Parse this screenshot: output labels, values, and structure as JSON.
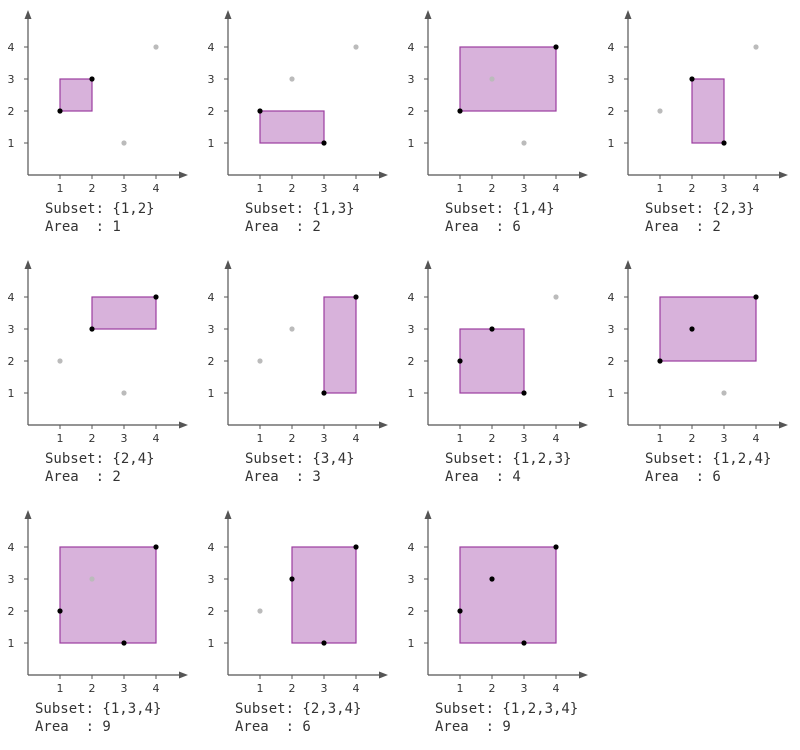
{
  "chart_data": {
    "type": "scatter",
    "axis_ticks": [
      "1",
      "2",
      "3",
      "4"
    ],
    "xlim": [
      0,
      5
    ],
    "ylim": [
      0,
      5
    ],
    "points": [
      {
        "label": "1",
        "x": 1,
        "y": 2
      },
      {
        "label": "2",
        "x": 2,
        "y": 3
      },
      {
        "label": "3",
        "x": 3,
        "y": 1
      },
      {
        "label": "4",
        "x": 4,
        "y": 4
      }
    ],
    "colors": {
      "axis": "#555555",
      "rect_fill": "#d8b2db",
      "rect_stroke": "#9b3c9f",
      "point_selected": "#000000",
      "point_unselected": "#bbbbbb"
    },
    "subset_label": "Subset:",
    "area_label": "Area  :",
    "panels": [
      {
        "subset": [
          1,
          2
        ],
        "subset_text": "{1,2}",
        "area": "1"
      },
      {
        "subset": [
          1,
          3
        ],
        "subset_text": "{1,3}",
        "area": "2"
      },
      {
        "subset": [
          1,
          4
        ],
        "subset_text": "{1,4}",
        "area": "6"
      },
      {
        "subset": [
          2,
          3
        ],
        "subset_text": "{2,3}",
        "area": "2"
      },
      {
        "subset": [
          2,
          4
        ],
        "subset_text": "{2,4}",
        "area": "2"
      },
      {
        "subset": [
          3,
          4
        ],
        "subset_text": "{3,4}",
        "area": "3"
      },
      {
        "subset": [
          1,
          2,
          3
        ],
        "subset_text": "{1,2,3}",
        "area": "4"
      },
      {
        "subset": [
          1,
          2,
          4
        ],
        "subset_text": "{1,2,4}",
        "area": "6"
      },
      {
        "subset": [
          1,
          3,
          4
        ],
        "subset_text": "{1,3,4}",
        "area": "9"
      },
      {
        "subset": [
          2,
          3,
          4
        ],
        "subset_text": "{2,3,4}",
        "area": "6"
      },
      {
        "subset": [
          1,
          2,
          3,
          4
        ],
        "subset_text": "{1,2,3,4}",
        "area": "9"
      }
    ]
  }
}
